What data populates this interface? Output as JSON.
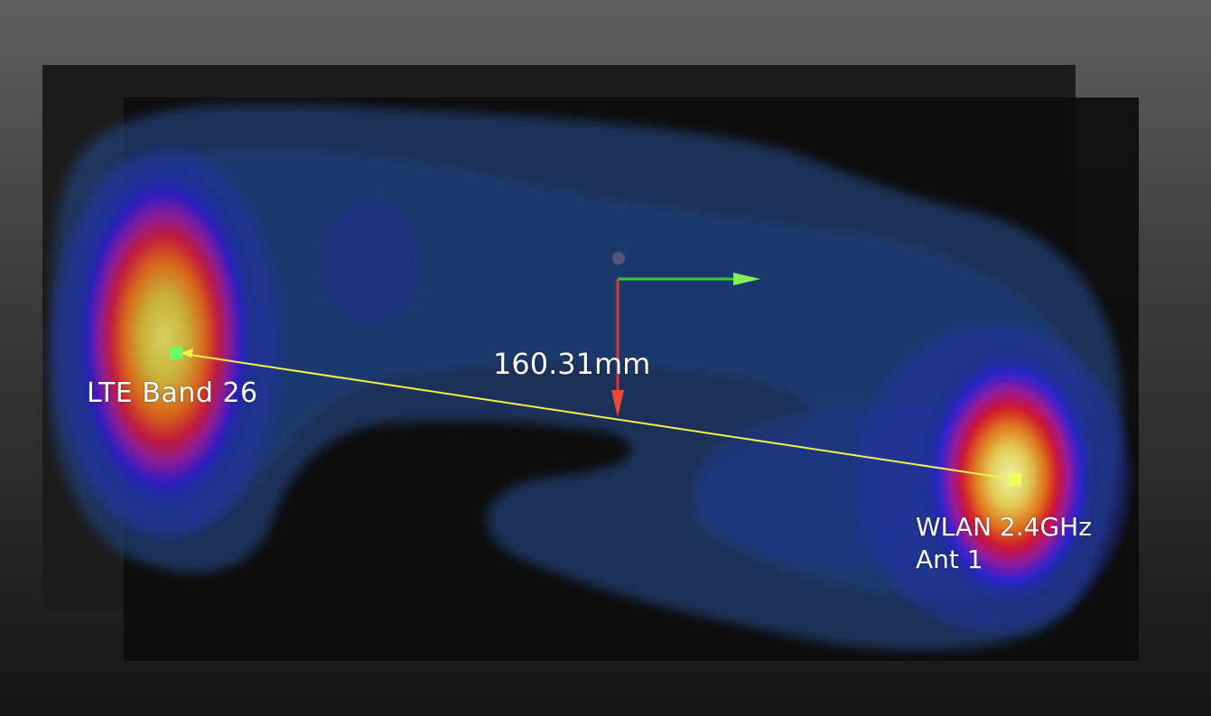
{
  "scene": {
    "measurement": {
      "distance_label": "160.31mm",
      "line_color": "#f2f24a"
    },
    "antennas": [
      {
        "id": "lte",
        "label": "LTE Band 26",
        "marker_color": "#66ff66"
      },
      {
        "id": "wlan",
        "label": "WLAN 2.4GHz\nAnt 1",
        "marker_color": "#eeff55"
      }
    ],
    "axes": {
      "x_color": "#33cc33",
      "y_color": "#dd3333",
      "origin_color": "#555577"
    },
    "colors": {
      "background_top": "#5a5a5a",
      "background_bottom": "#1a1a1a",
      "board_back": "#1c1c1c",
      "board_front": "#0c0c0c",
      "field_low": "#23447a",
      "field_mid": "#1a2cb0",
      "field_high": "#d8d84a"
    }
  }
}
